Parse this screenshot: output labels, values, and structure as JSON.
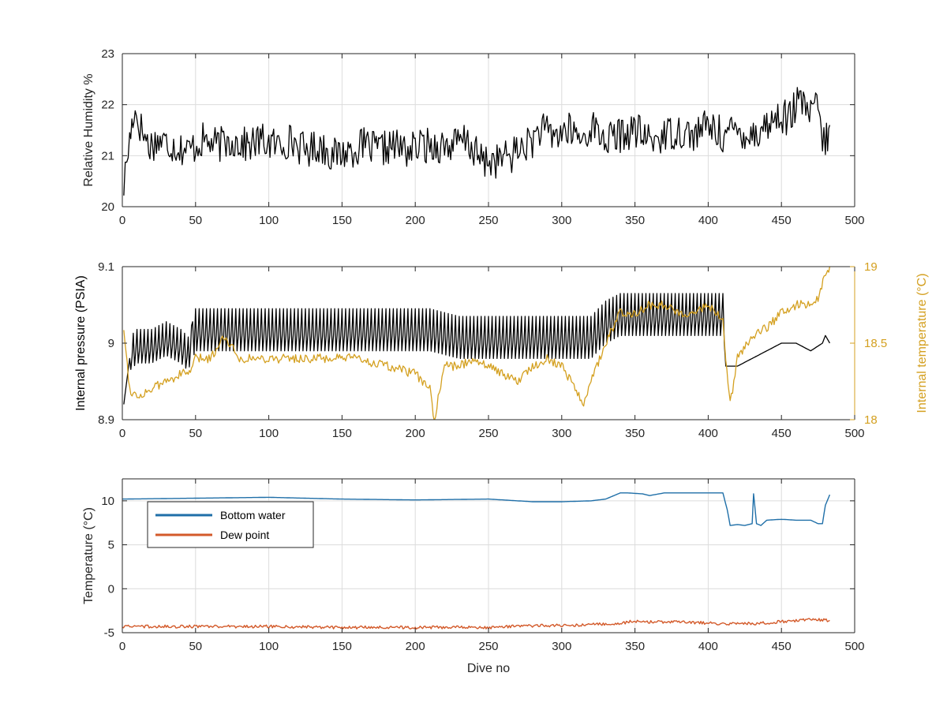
{
  "colors": {
    "black": "#000000",
    "orange": "#d4a020",
    "blue": "#1f6fa8",
    "red": "#d35a2a",
    "grid": "#dcdcdc",
    "axis": "#262626"
  },
  "chart_data": [
    {
      "type": "line",
      "xlabel": "",
      "ylabel": "Relative Humidity %",
      "xlim": [
        0,
        500
      ],
      "ylim": [
        20,
        23
      ],
      "xticks": [
        "0",
        "50",
        "100",
        "150",
        "200",
        "250",
        "300",
        "350",
        "400",
        "450",
        "500"
      ],
      "yticks": [
        "20",
        "21",
        "22",
        "23"
      ],
      "grid": true,
      "series": [
        {
          "color": "#000000",
          "x": [
            1,
            3,
            5,
            8,
            12,
            18,
            25,
            35,
            45,
            55,
            65,
            75,
            85,
            95,
            105,
            115,
            125,
            135,
            145,
            155,
            165,
            175,
            185,
            195,
            205,
            215,
            225,
            235,
            245,
            255,
            265,
            275,
            280,
            285,
            295,
            305,
            315,
            320,
            330,
            340,
            350,
            360,
            370,
            380,
            390,
            400,
            410,
            420,
            430,
            440,
            450,
            455,
            460,
            465,
            470,
            475,
            478,
            480,
            483
          ],
          "values": [
            20.4,
            20.9,
            21.3,
            21.9,
            21.6,
            21.2,
            21.3,
            21.2,
            21.1,
            21.3,
            21.2,
            21.3,
            21.2,
            21.3,
            21.2,
            21.3,
            21.1,
            21.2,
            21.0,
            21.1,
            21.2,
            21.1,
            21.2,
            21.1,
            21.2,
            21.2,
            21.2,
            21.3,
            20.9,
            20.9,
            21.0,
            21.2,
            21.3,
            21.5,
            21.4,
            21.5,
            21.3,
            21.6,
            21.3,
            21.4,
            21.5,
            21.3,
            21.4,
            21.5,
            21.4,
            21.6,
            21.4,
            21.5,
            21.4,
            21.6,
            21.8,
            21.7,
            22.0,
            22.0,
            21.8,
            22.0,
            21.3,
            21.2,
            21.6
          ]
        }
      ]
    },
    {
      "type": "line",
      "xlabel": "",
      "ylabel": "Internal pressure (PSIA)",
      "ylabel_right": "Internal temperature (°C)",
      "xlim": [
        0,
        500
      ],
      "ylim": [
        8.9,
        9.1
      ],
      "ylim_right": [
        18,
        19
      ],
      "xticks": [
        "0",
        "50",
        "100",
        "150",
        "200",
        "250",
        "300",
        "350",
        "400",
        "450",
        "500"
      ],
      "yticks": [
        "8.9",
        "9",
        "9.1"
      ],
      "yticks_right": [
        "18",
        "18.5",
        "19"
      ],
      "grid": false,
      "series": [
        {
          "color": "#000000",
          "axis": "left",
          "x": [
            1,
            5,
            10,
            20,
            30,
            40,
            45,
            48,
            50,
            70,
            90,
            110,
            130,
            150,
            170,
            190,
            210,
            230,
            240,
            250,
            270,
            280,
            290,
            300,
            310,
            320,
            330,
            340,
            350,
            370,
            390,
            410,
            412,
            415,
            420,
            430,
            440,
            450,
            460,
            470,
            478,
            480,
            483
          ],
          "values": [
            8.92,
            8.98,
            8.99,
            8.99,
            9.0,
            8.99,
            8.98,
            9.0,
            9.01,
            9.01,
            9.01,
            9.01,
            9.01,
            9.01,
            9.01,
            9.01,
            9.01,
            9.0,
            9.0,
            9.0,
            9.0,
            9.0,
            9.0,
            9.0,
            9.0,
            9.0,
            9.02,
            9.03,
            9.03,
            9.03,
            9.03,
            9.03,
            8.97,
            8.97,
            8.97,
            8.98,
            8.99,
            9.0,
            9.0,
            8.99,
            9.0,
            9.01,
            9.0
          ]
        },
        {
          "color": "#d4a020",
          "axis": "right",
          "x": [
            1,
            5,
            10,
            20,
            30,
            40,
            45,
            48,
            50,
            60,
            70,
            80,
            100,
            120,
            140,
            160,
            180,
            200,
            210,
            213,
            220,
            230,
            240,
            250,
            260,
            270,
            280,
            290,
            300,
            310,
            315,
            320,
            330,
            340,
            350,
            360,
            370,
            380,
            390,
            400,
            410,
            412,
            415,
            420,
            430,
            440,
            450,
            460,
            470,
            475,
            480,
            483
          ],
          "values": [
            18.6,
            18.2,
            18.15,
            18.2,
            18.25,
            18.3,
            18.3,
            18.35,
            18.4,
            18.4,
            18.55,
            18.4,
            18.4,
            18.4,
            18.4,
            18.4,
            18.35,
            18.3,
            18.2,
            18.0,
            18.35,
            18.35,
            18.4,
            18.35,
            18.3,
            18.25,
            18.35,
            18.4,
            18.35,
            18.2,
            18.1,
            18.25,
            18.5,
            18.7,
            18.7,
            18.75,
            18.75,
            18.7,
            18.7,
            18.75,
            18.65,
            18.4,
            18.1,
            18.4,
            18.55,
            18.6,
            18.7,
            18.75,
            18.75,
            18.8,
            18.95,
            19.0
          ]
        }
      ]
    },
    {
      "type": "line",
      "xlabel": "Dive no",
      "ylabel": "Temperature (°C)",
      "xlim": [
        0,
        500
      ],
      "ylim": [
        -5,
        12.5
      ],
      "xticks": [
        "0",
        "50",
        "100",
        "150",
        "200",
        "250",
        "300",
        "350",
        "400",
        "450",
        "500"
      ],
      "yticks": [
        "-5",
        "0",
        "5",
        "10"
      ],
      "grid": true,
      "legend_position": "top-left",
      "series": [
        {
          "name": "Bottom water",
          "color": "#1f6fa8",
          "x": [
            0,
            50,
            100,
            150,
            200,
            250,
            280,
            300,
            320,
            330,
            340,
            345,
            355,
            360,
            370,
            380,
            400,
            410,
            413,
            415,
            420,
            425,
            430,
            431,
            433,
            436,
            440,
            450,
            460,
            470,
            475,
            478,
            480,
            483
          ],
          "values": [
            10.2,
            10.3,
            10.4,
            10.2,
            10.1,
            10.2,
            9.9,
            9.9,
            10.0,
            10.2,
            10.9,
            10.9,
            10.8,
            10.6,
            10.9,
            10.9,
            10.9,
            10.9,
            9.0,
            7.2,
            7.3,
            7.2,
            7.4,
            10.8,
            7.4,
            7.2,
            7.8,
            7.9,
            7.8,
            7.8,
            7.4,
            7.4,
            9.5,
            10.7
          ]
        },
        {
          "name": "Dew point",
          "color": "#d35a2a",
          "x": [
            0,
            50,
            100,
            150,
            200,
            250,
            280,
            300,
            320,
            340,
            350,
            360,
            380,
            400,
            420,
            440,
            460,
            470,
            483
          ],
          "values": [
            -4.3,
            -4.3,
            -4.3,
            -4.4,
            -4.4,
            -4.4,
            -4.2,
            -4.2,
            -4.1,
            -3.9,
            -3.7,
            -3.8,
            -3.8,
            -3.9,
            -4.0,
            -3.9,
            -3.6,
            -3.5,
            -3.6
          ]
        }
      ]
    }
  ]
}
